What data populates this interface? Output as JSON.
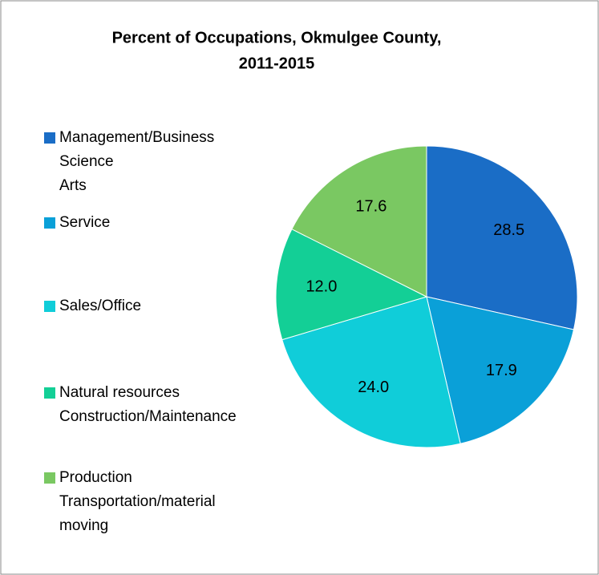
{
  "chart_data": {
    "type": "pie",
    "title": [
      "Percent of Occupations, Okmulgee County,",
      "2011-2015"
    ],
    "categories": [
      [
        "Management/Business",
        "Science",
        "Arts"
      ],
      [
        "Service"
      ],
      [
        "Sales/Office"
      ],
      [
        "Natural resources",
        "Construction/Maintenance"
      ],
      [
        "Production",
        "Transportation/material",
        "moving"
      ]
    ],
    "values": [
      28.5,
      17.9,
      24,
      12,
      17.6
    ],
    "value_labels": [
      "28.5",
      "17.9",
      "24.0",
      "12.0",
      "17.6"
    ],
    "colors": [
      "#1a6dc6",
      "#0aa0d8",
      "#10cdd9",
      "#13cf96",
      "#7ac862"
    ]
  }
}
